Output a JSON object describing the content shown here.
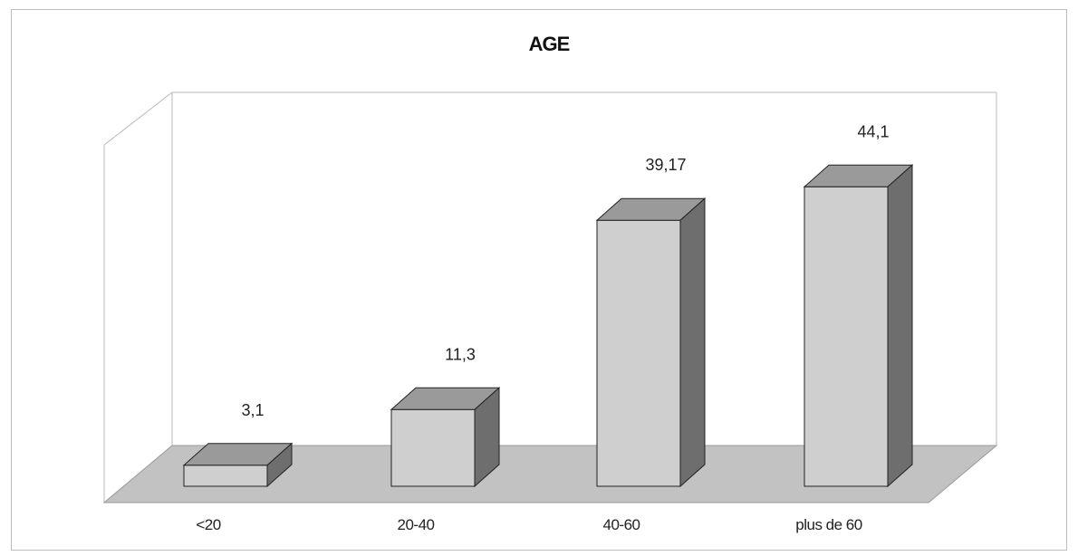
{
  "chart_data": {
    "type": "bar",
    "title": "AGE",
    "categories": [
      "<20",
      "20-40",
      "40-60",
      "plus de 60"
    ],
    "values": [
      3.1,
      11.3,
      39.17,
      44.1
    ],
    "value_labels": [
      "3,1",
      "11,3",
      "39,17",
      "44,1"
    ],
    "xlabel": "",
    "ylabel": "",
    "ylim": [
      0,
      50
    ],
    "grid": false,
    "legend": "none",
    "style": "3d-column"
  },
  "colors": {
    "bar_front": "#cfcfcf",
    "bar_top": "#9a9a9a",
    "bar_side": "#6e6e6e",
    "floor": "#c2c2c2",
    "wall_line": "#b8b8b8"
  }
}
